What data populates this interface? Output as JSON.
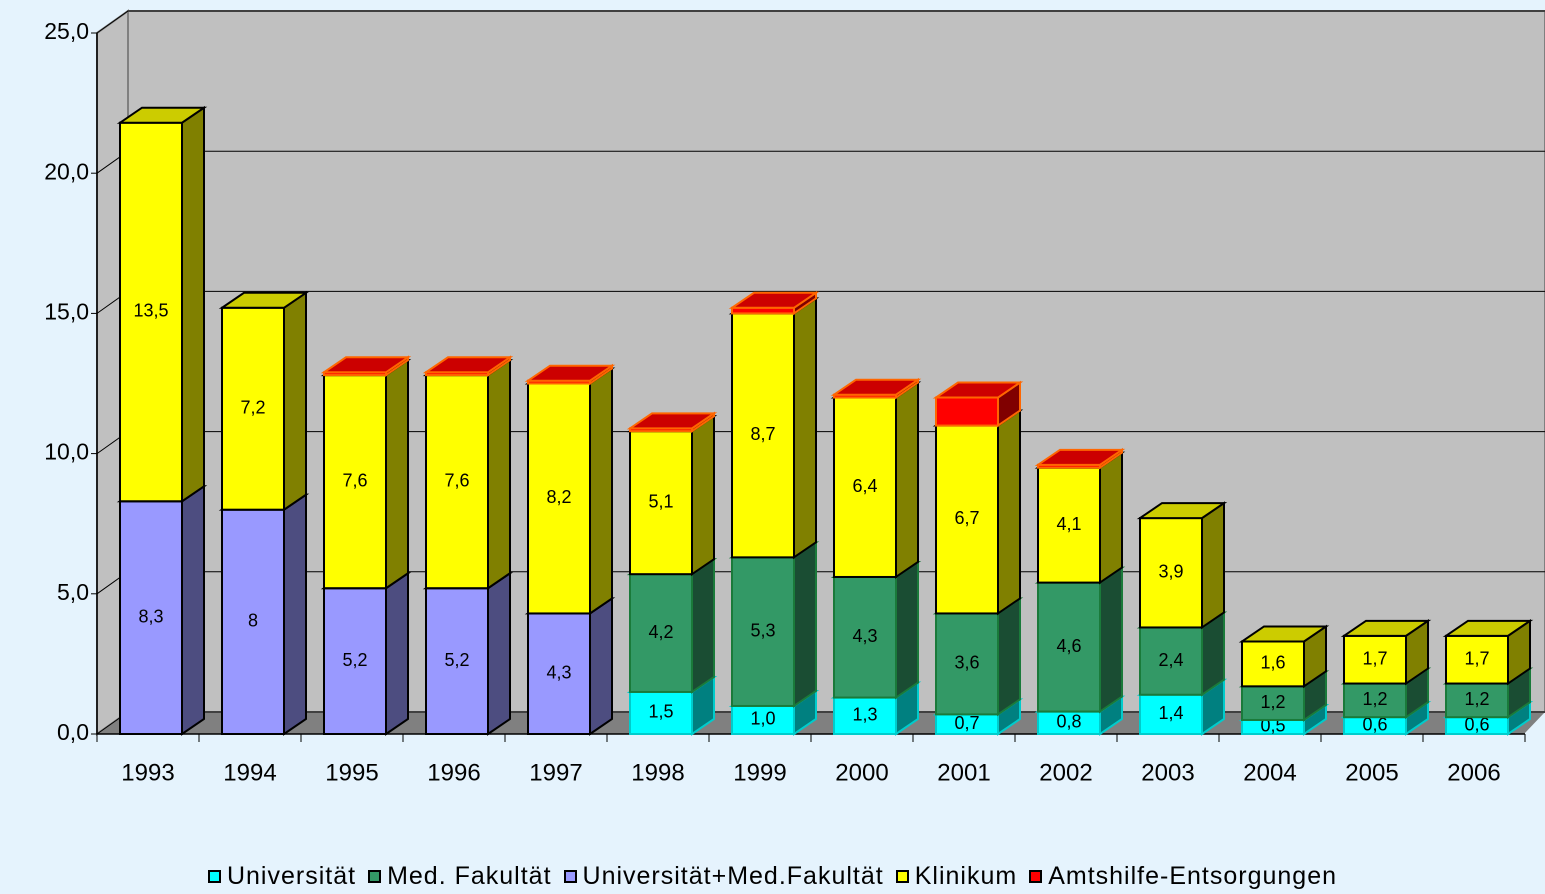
{
  "chart_data": {
    "type": "bar3d_stacked",
    "categories": [
      "1993",
      "1994",
      "1995",
      "1996",
      "1997",
      "1998",
      "1999",
      "2000",
      "2001",
      "2002",
      "2003",
      "2004",
      "2005",
      "2006"
    ],
    "series": [
      {
        "name": "Universität",
        "color": "#00ffff",
        "values": [
          null,
          null,
          null,
          null,
          null,
          1.5,
          1.0,
          1.3,
          0.7,
          0.8,
          1.4,
          0.5,
          0.6,
          0.6
        ],
        "value_labels": [
          null,
          null,
          null,
          null,
          null,
          "1,5",
          "1,0",
          "1,3",
          "0,7",
          "0,8",
          "1,4",
          "0,5",
          "0,6",
          "0,6"
        ]
      },
      {
        "name": "Med. Fakultät",
        "color": "#339966",
        "values": [
          null,
          null,
          null,
          null,
          null,
          4.2,
          5.3,
          4.3,
          3.6,
          4.6,
          2.4,
          1.2,
          1.2,
          1.2
        ],
        "value_labels": [
          null,
          null,
          null,
          null,
          null,
          "4,2",
          "5,3",
          "4,3",
          "3,6",
          "4,6",
          "2,4",
          "1,2",
          "1,2",
          "1,2"
        ]
      },
      {
        "name": "Universität+Med.Fakultät",
        "color": "#9999ff",
        "values": [
          8.3,
          8,
          5.2,
          5.2,
          4.3,
          null,
          null,
          null,
          null,
          null,
          null,
          null,
          null,
          null
        ],
        "value_labels": [
          "8,3",
          "8",
          "5,2",
          "5,2",
          "4,3",
          null,
          null,
          null,
          null,
          null,
          null,
          null,
          null,
          null
        ]
      },
      {
        "name": "Klinikum",
        "color": "#ffff00",
        "values": [
          13.5,
          7.2,
          7.6,
          7.6,
          8.2,
          5.1,
          8.7,
          6.4,
          6.7,
          4.1,
          3.9,
          1.6,
          1.7,
          1.7
        ],
        "value_labels": [
          "13,5",
          "7,2",
          "7,6",
          "7,6",
          "8,2",
          "5,1",
          "8,7",
          "6,4",
          "6,7",
          "4,1",
          "3,9",
          "1,6",
          "1,7",
          "1,7"
        ]
      },
      {
        "name": "Amtshilfe-Entsorgungen",
        "color": "#ff0000",
        "values": [
          null,
          null,
          0.1,
          0.1,
          0.1,
          0.1,
          0.2,
          0.1,
          1.0,
          0.1,
          null,
          null,
          null,
          null
        ]
      }
    ],
    "ylim": [
      0,
      25
    ],
    "yticks": [
      {
        "value": 0,
        "label": "0,0"
      },
      {
        "value": 5,
        "label": "5,0"
      },
      {
        "value": 10,
        "label": "10,0"
      },
      {
        "value": 15,
        "label": "15,0"
      },
      {
        "value": 20,
        "label": "20,0"
      },
      {
        "value": 25,
        "label": "25,0"
      }
    ],
    "grid": true
  }
}
